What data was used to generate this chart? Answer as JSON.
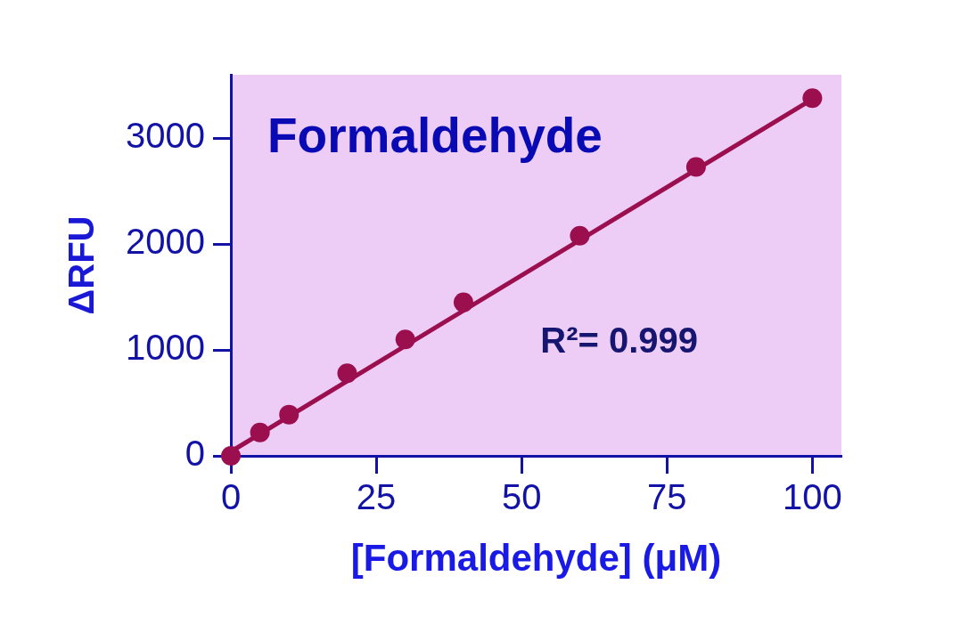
{
  "chart_data": {
    "type": "scatter",
    "title": "Formaldehyde",
    "xlabel": "[Formaldehyde] (μM)",
    "ylabel": "ΔRFU",
    "annotations": [
      "R²= 0.999"
    ],
    "xlim": [
      0,
      105
    ],
    "ylim": [
      0,
      3600
    ],
    "xticks": [
      0,
      25,
      50,
      75,
      100
    ],
    "yticks": [
      0,
      1000,
      2000,
      3000
    ],
    "grid": false,
    "legend": false,
    "marker": "circle",
    "series": [
      {
        "type": "line",
        "color": "#9b0f4f",
        "x": [
          0,
          100
        ],
        "values": [
          40,
          3370
        ],
        "marker": "none"
      },
      {
        "color": "#9b0f4f",
        "x": [
          0,
          5,
          10,
          20,
          30,
          40,
          60,
          80,
          100
        ],
        "values": [
          0,
          220,
          390,
          780,
          1100,
          1450,
          2080,
          2730,
          3380
        ]
      }
    ]
  }
}
